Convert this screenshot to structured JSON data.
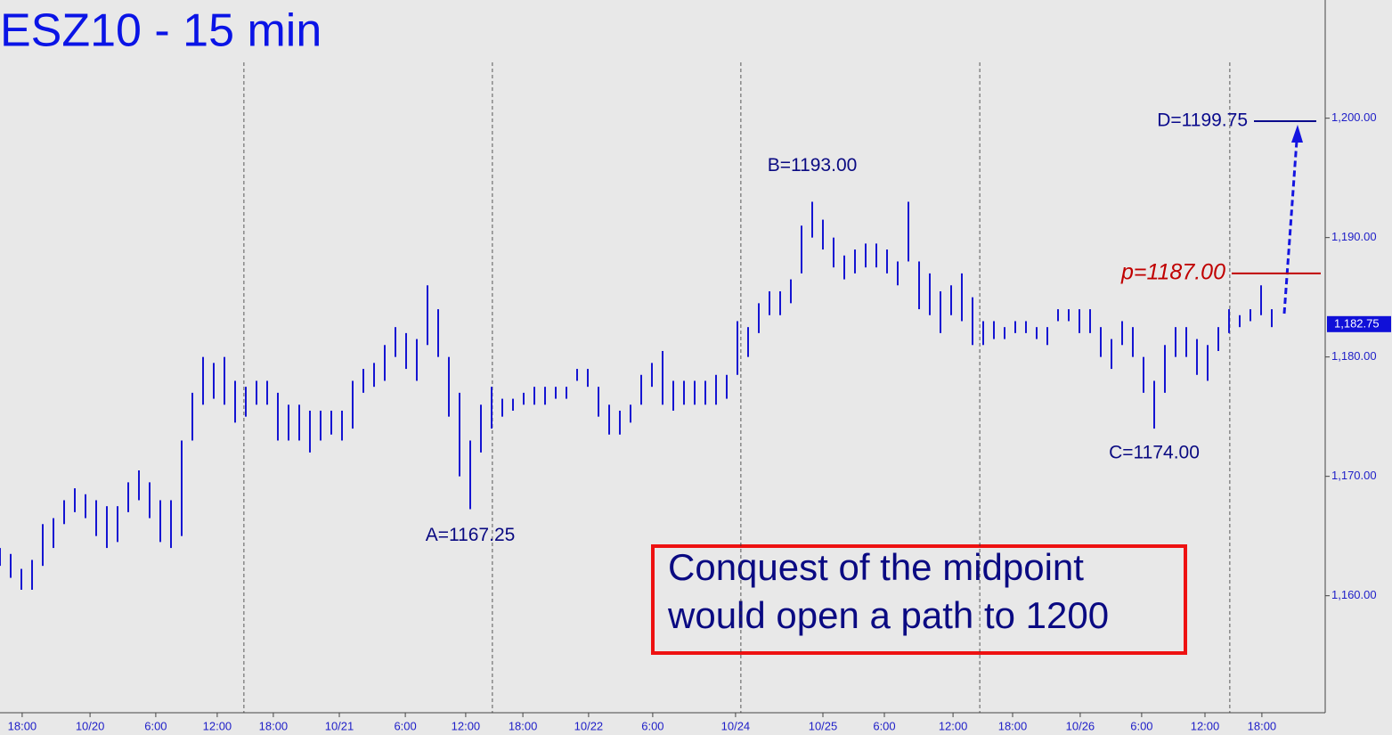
{
  "chart_data": {
    "type": "hl-bar",
    "title": "ESZ10 - 15 min",
    "color": "#1414d2",
    "xlim": [
      0,
      496
    ],
    "ylim": [
      1150.2,
      1209.9
    ],
    "xticks": [
      {
        "value": 8.3,
        "label": "18:00"
      },
      {
        "value": 33.7,
        "label": "10/20"
      },
      {
        "value": 58.3,
        "label": "6:00"
      },
      {
        "value": 81.3,
        "label": "12:00"
      },
      {
        "value": 102.3,
        "label": "18:00"
      },
      {
        "value": 127,
        "label": "10/21"
      },
      {
        "value": 151.7,
        "label": "6:00"
      },
      {
        "value": 174.3,
        "label": "12:00"
      },
      {
        "value": 195.7,
        "label": "18:00"
      },
      {
        "value": 220.3,
        "label": "10/22"
      },
      {
        "value": 244.3,
        "label": "6:00"
      },
      {
        "value": 275.3,
        "label": "10/24"
      },
      {
        "value": 308,
        "label": "10/25"
      },
      {
        "value": 331,
        "label": "6:00"
      },
      {
        "value": 356.7,
        "label": "12:00"
      },
      {
        "value": 379,
        "label": "18:00"
      },
      {
        "value": 404.3,
        "label": "10/26"
      },
      {
        "value": 427.3,
        "label": "6:00"
      },
      {
        "value": 451,
        "label": "12:00"
      },
      {
        "value": 472.3,
        "label": "18:00"
      }
    ],
    "yticks": [
      {
        "value": 1160,
        "label": "1,160.00"
      },
      {
        "value": 1170,
        "label": "1,170.00"
      },
      {
        "value": 1180,
        "label": "1,180.00"
      },
      {
        "value": 1190,
        "label": "1,190.00"
      },
      {
        "value": 1200,
        "label": "1,200.00"
      }
    ],
    "separators": [
      91.3,
      184.3,
      277.3,
      366.7,
      460.3
    ],
    "last_price": {
      "value": 1182.75,
      "label": "1,182.75"
    },
    "x": [
      0,
      4,
      8,
      12,
      16,
      20,
      24,
      28,
      32,
      36,
      40,
      44,
      48,
      52,
      56,
      60,
      64,
      68,
      72,
      76,
      80,
      84,
      88,
      92,
      96,
      100,
      104,
      108,
      112,
      116,
      120,
      124,
      128,
      132,
      136,
      140,
      144,
      148,
      152,
      156,
      160,
      164,
      168,
      172,
      176,
      180,
      184,
      188,
      192,
      196,
      200,
      204,
      208,
      212,
      216,
      220,
      224,
      228,
      232,
      236,
      240,
      244,
      248,
      252,
      256,
      260,
      264,
      268,
      272,
      276,
      280,
      284,
      288,
      292,
      296,
      300,
      304,
      308,
      312,
      316,
      320,
      324,
      328,
      332,
      336,
      340,
      344,
      348,
      352,
      356,
      360,
      364,
      368,
      372,
      376,
      380,
      384,
      388,
      392,
      396,
      400,
      404,
      408,
      412,
      416,
      420,
      424,
      428,
      432,
      436,
      440,
      444,
      448,
      452,
      456,
      460,
      464,
      468,
      472,
      476
    ],
    "high": [
      1164,
      1163.5,
      1162.25,
      1163,
      1166,
      1166.5,
      1168,
      1169,
      1168.5,
      1168,
      1167.5,
      1167.5,
      1169.5,
      1170.5,
      1169.5,
      1168,
      1168,
      1173,
      1177,
      1180,
      1179.5,
      1180,
      1178,
      1177.5,
      1178,
      1178,
      1177,
      1176,
      1176,
      1175.5,
      1175.5,
      1175.5,
      1175.5,
      1178,
      1179,
      1179.5,
      1181,
      1182.5,
      1182,
      1181.5,
      1186,
      1184,
      1180,
      1177,
      1173,
      1176,
      1177.5,
      1176.5,
      1176.5,
      1177,
      1177.5,
      1177.5,
      1177.5,
      1177.5,
      1179,
      1179,
      1177.5,
      1176,
      1175.5,
      1176,
      1178.5,
      1179.5,
      1180.5,
      1178,
      1178,
      1178,
      1178,
      1178.5,
      1178.5,
      1183,
      1182.5,
      1184.5,
      1185.5,
      1185.5,
      1186.5,
      1191,
      1193,
      1191.5,
      1190,
      1188.5,
      1189,
      1189.5,
      1189.5,
      1189,
      1188,
      1193,
      1188,
      1187,
      1185.5,
      1186,
      1187,
      1185,
      1183,
      1183,
      1182.5,
      1183,
      1183,
      1182.5,
      1182.5,
      1184,
      1184,
      1184,
      1184,
      1182.5,
      1181.5,
      1183,
      1182.5,
      1180,
      1178,
      1181,
      1182.5,
      1182.5,
      1181.5,
      1181,
      1182.5,
      1184,
      1183.5,
      1184,
      1186,
      1184
    ],
    "low": [
      1162.5,
      1161.5,
      1160.5,
      1160.5,
      1162.5,
      1164,
      1166,
      1167,
      1166.5,
      1165,
      1164,
      1164.5,
      1167,
      1168,
      1166.5,
      1164.5,
      1164,
      1165,
      1173,
      1176,
      1176.5,
      1176,
      1174.5,
      1175,
      1176,
      1176,
      1173,
      1173,
      1173,
      1172,
      1173,
      1173.5,
      1173,
      1174,
      1177,
      1177.5,
      1178,
      1180,
      1179,
      1178,
      1181,
      1180,
      1175,
      1170,
      1167.25,
      1172,
      1174,
      1175,
      1175.5,
      1176,
      1176,
      1176,
      1176.5,
      1176.5,
      1178,
      1177.5,
      1175,
      1173.5,
      1173.5,
      1174.5,
      1176,
      1177.5,
      1176,
      1175.5,
      1176,
      1176,
      1176,
      1176,
      1176.5,
      1178.5,
      1180,
      1182,
      1183.5,
      1183.5,
      1184.5,
      1187,
      1190,
      1189,
      1187.5,
      1186.5,
      1187,
      1187.5,
      1187.5,
      1187,
      1186,
      1188,
      1184,
      1183.5,
      1182,
      1183.5,
      1183,
      1181,
      1181,
      1181.5,
      1181.5,
      1182,
      1182,
      1181.5,
      1181,
      1183,
      1183,
      1182,
      1182,
      1180,
      1179,
      1181,
      1180,
      1177,
      1174,
      1177,
      1180,
      1180,
      1178.5,
      1178,
      1180.5,
      1182,
      1182.5,
      1183,
      1183.5,
      1182.5
    ],
    "annotations": [
      {
        "label": "A=1167.25",
        "value": 1167.25,
        "x": 176
      },
      {
        "label": "B=1193.00",
        "value": 1193,
        "x": 304
      },
      {
        "label": "C=1174.00",
        "value": 1174,
        "x": 432
      }
    ],
    "levels": [
      {
        "label": "D=1199.75",
        "value": 1199.75,
        "color": "#0a0a8c"
      },
      {
        "label": "p=1187.00",
        "value": 1187,
        "color": "#c00000"
      }
    ],
    "note": [
      "Conquest of the midpoint",
      "would open a path to 1200"
    ]
  }
}
